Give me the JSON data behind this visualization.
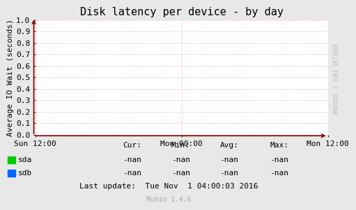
{
  "title": "Disk latency per device - by day",
  "ylabel": "Average IO Wait (seconds)",
  "background_color": "#e8e8e8",
  "plot_bg_color": "#ffffff",
  "grid_color": "#ffaaaa",
  "axis_color": "#880000",
  "title_fontsize": 11,
  "tick_fontsize": 8,
  "label_fontsize": 8,
  "xtick_labels": [
    "Sun 12:00",
    "Mon 00:00",
    "Mon 12:00"
  ],
  "xtick_positions": [
    0.0,
    0.5,
    1.0
  ],
  "ytick_labels": [
    "0.0",
    "0.1",
    "0.2",
    "0.3",
    "0.4",
    "0.5",
    "0.6",
    "0.7",
    "0.8",
    "0.9",
    "1.0"
  ],
  "ytick_positions": [
    0.0,
    0.1,
    0.2,
    0.3,
    0.4,
    0.5,
    0.6,
    0.7,
    0.8,
    0.9,
    1.0
  ],
  "ylim": [
    0.0,
    1.0
  ],
  "xlim": [
    0.0,
    1.0
  ],
  "legend_entries": [
    {
      "label": "sda",
      "color": "#00cc00"
    },
    {
      "label": "sdb",
      "color": "#0066ff"
    }
  ],
  "stats_header": [
    "Cur:",
    "Min:",
    "Avg:",
    "Max:"
  ],
  "stats_sda": [
    "-nan",
    "-nan",
    "-nan",
    "-nan"
  ],
  "stats_sdb": [
    "-nan",
    "-nan",
    "-nan",
    "-nan"
  ],
  "last_update": "Last update:  Tue Nov  1 04:00:03 2016",
  "munin_version": "Munin 1.4.6",
  "watermark": "RRDTOOL / TOBI OETIKER",
  "font_family": "DejaVu Sans Mono"
}
